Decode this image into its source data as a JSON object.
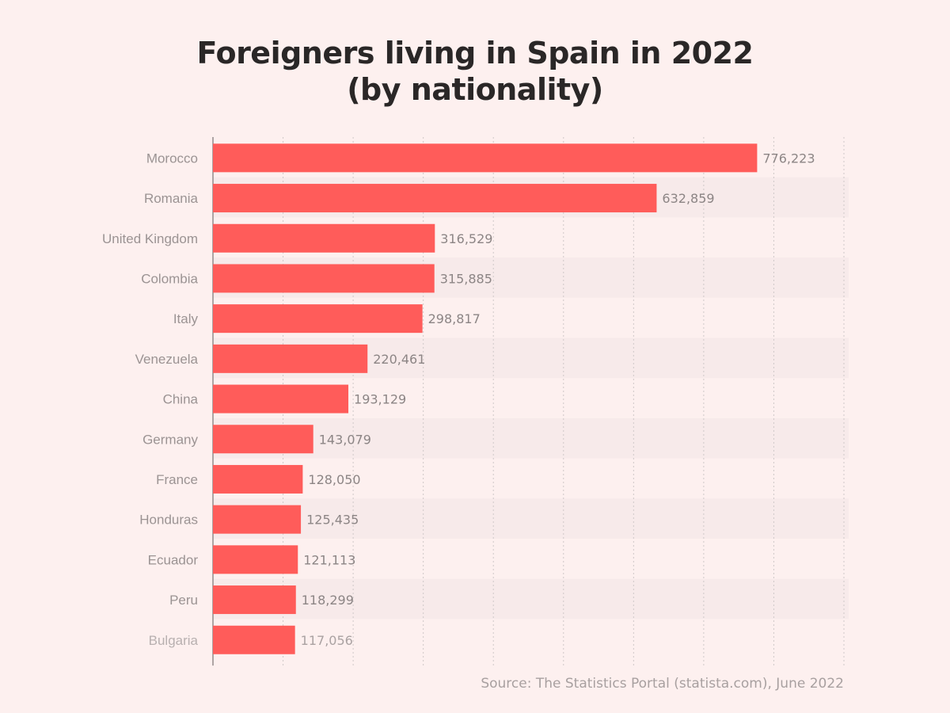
{
  "title_line1": "Foreigners living in Spain in 2022",
  "title_line2": "(by nationality)",
  "source": "Source: The Statistics Portal (statista.com), June 2022",
  "colors": {
    "background": "#fdf0ef",
    "bar": "#ff5c5a",
    "label": "#9b9393",
    "value": "#8c8585",
    "grid": "#cfc8c8",
    "band": "#f7eaea"
  },
  "chart_data": {
    "type": "bar",
    "orientation": "horizontal",
    "categories": [
      "Morocco",
      "Romania",
      "United Kingdom",
      "Colombia",
      "Italy",
      "Venezuela",
      "China",
      "Germany",
      "France",
      "Honduras",
      "Ecuador",
      "Peru",
      "Bulgaria"
    ],
    "values": [
      776223,
      632859,
      316529,
      315885,
      298817,
      220461,
      193129,
      143079,
      128050,
      125435,
      121113,
      118299,
      117056
    ],
    "value_labels": [
      "776,223",
      "632,859",
      "316,529",
      "315,885",
      "298,817",
      "220,461",
      "193,129",
      "143,079",
      "128,050",
      "125,435",
      "121,113",
      "118,299",
      "117,056"
    ],
    "xlim": [
      0,
      900000
    ],
    "grid": true,
    "grid_step": 100000
  }
}
